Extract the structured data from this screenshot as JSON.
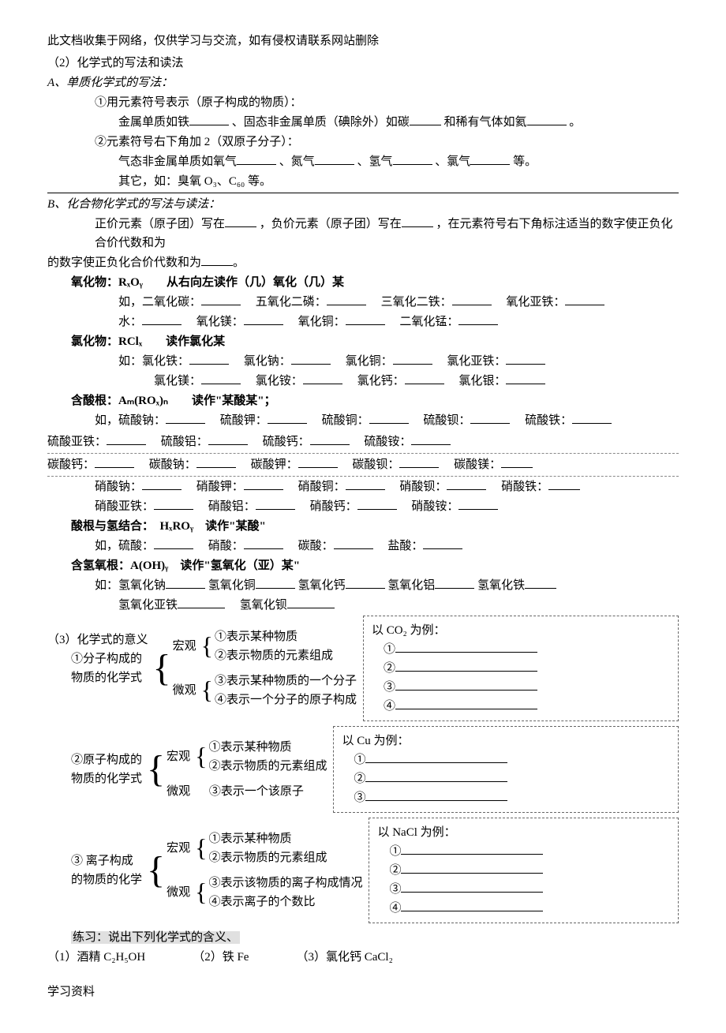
{
  "header": {
    "note": "此文档收集于网络，仅供学习与交流，如有侵权请联系网站删除",
    "section2_title": "（2）化学式的写法和读法"
  },
  "partA": {
    "title": "A、单质化学式的写法：",
    "item1_lead": "①用元素符号表示（原子构成的物质）：",
    "item1_body_a": "金属单质如铁",
    "item1_body_b": "、固态非金属单质（碘除外）如碳",
    "item1_body_c": "和稀有气体如氦",
    "item1_body_d": "。",
    "item2_lead": "②元素符号右下角加 2（双原子分子）：",
    "item2_body_a": "气态非金属单质如氧气",
    "item2_body_b": "、氮气",
    "item2_body_c": "、氢气",
    "item2_body_d": "、氯气",
    "item2_body_e": "等。",
    "item2_other": "其它，如：臭氧 O₃、C₆₀ 等。"
  },
  "partB": {
    "title": "B、化合物化学式的写法与读法：",
    "rule_a": "正价元素（原子团）写在",
    "rule_b": "，负价元素（原子团）写在",
    "rule_c": "，在元素符号右下角标注适当的数字使正负化合价代数和为",
    "rule_d": "。",
    "oxide_title": "氧化物：RₓOᵧ　　从右向左读作（几）氧化（几）某",
    "oxide_l1": [
      "如，二氧化碳：",
      "五氧化二磷：",
      "三氧化二铁：",
      "氧化亚铁："
    ],
    "oxide_l2": [
      "水：",
      "氧化镁：",
      "氧化铜：",
      "二氧化锰："
    ],
    "chloride_title": "氯化物：RClₓ　　读作氯化某",
    "chloride_l1": [
      "如：氯化铁：",
      "氯化钠：",
      "氯化铜：",
      "氯化亚铁："
    ],
    "chloride_l2": [
      "氯化镁：",
      "氯化铵：",
      "氯化钙：",
      "氯化银："
    ],
    "acidroot_title": "含酸根：Aₘ(ROₓ)ₙ　　读作\"某酸某\"；",
    "sulfate_l1": [
      "如，硫酸钠：",
      "硫酸钾：",
      "硫酸铜：",
      "硫酸钡：",
      "硫酸铁："
    ],
    "sulfate_l2": [
      "硫酸亚铁：",
      "硫酸铝：",
      "硫酸钙：",
      "硫酸铵："
    ],
    "carbonate": [
      "碳酸钙：",
      "碳酸钠：",
      "碳酸钾：",
      "碳酸钡：",
      "碳酸镁："
    ],
    "nitrate_l1": [
      "硝酸钠：",
      "硝酸钾：",
      "硝酸铜：",
      "硝酸钡：",
      "硝酸铁："
    ],
    "nitrate_l2": [
      "硝酸亚铁：",
      "硝酸铝：",
      "硝酸钙：",
      "硝酸铵："
    ],
    "acid_h_title": "酸根与氢结合：　HₓROᵧ　读作\"某酸\"",
    "acids": [
      "如，硫酸：",
      "硝酸：",
      "碳酸：",
      "盐酸："
    ],
    "hydroxide_title": "含氢氧根：A(OH)ᵧ　读作\"氢氧化（亚）某\"",
    "hydroxide_l1": [
      "如：氢氧化钠",
      "氢氧化铜",
      "氢氧化钙",
      "氢氧化铝",
      "氢氧化铁"
    ],
    "hydroxide_l2": [
      "氢氧化亚铁",
      "氢氧化钡"
    ]
  },
  "section3": {
    "title": "（3）化学式的意义",
    "block1": {
      "label1": "①分子构成的",
      "label2": "物质的化学式",
      "macro": "宏观",
      "micro": "微观",
      "m1": "①表示某种物质",
      "m2": "②表示物质的元素组成",
      "m3": "③表示某种物质的一个分子",
      "m4": "④表示一个分子的原子构成",
      "ex_title": "以 CO₂ 为例：",
      "ex": [
        "①",
        "②",
        "③",
        "④"
      ]
    },
    "block2": {
      "label1": "②原子构成的",
      "label2": "物质的化学式",
      "macro": "宏观",
      "micro": "微观",
      "m1": "①表示某种物质",
      "m2": "②表示物质的元素组成",
      "m3": "③表示一个该原子",
      "ex_title": "以 Cu 为例：",
      "ex": [
        "①",
        "②",
        "③"
      ]
    },
    "block3": {
      "label1": "③ 离子构成",
      "label2": "的物质的化学",
      "macro": "宏观",
      "micro": "微观",
      "m1": "①表示某种物质",
      "m2": "②表示物质的元素组成",
      "m3": "③表示该物质的离子构成情况",
      "m4": "④表示离子的个数比",
      "ex_title": "以 NaCl 为例：",
      "ex": [
        "①",
        "②",
        "③",
        "④"
      ]
    }
  },
  "practice": {
    "title": "练习：说出下列化学式的含义、",
    "q1": "（1）酒精 C₂H₅OH",
    "q2": "（2）铁 Fe",
    "q3": "（3）氯化钙 CaCl₂"
  },
  "footer": "学习资料"
}
